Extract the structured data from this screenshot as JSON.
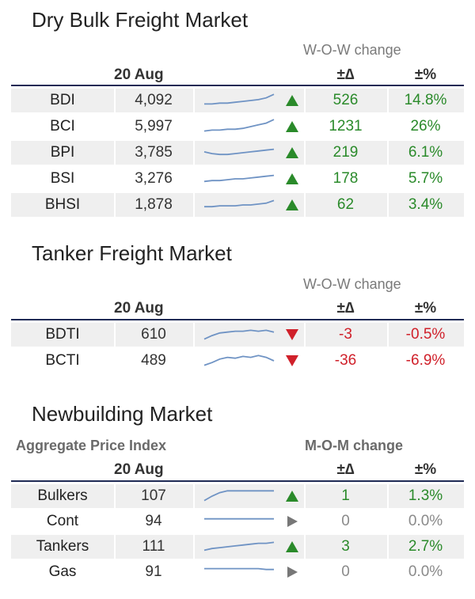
{
  "dry": {
    "title": "Dry Bulk Freight Market",
    "change_label": "W-O-W change",
    "date": "20 Aug",
    "delta_label": "±∆",
    "pct_label": "±%",
    "rows": [
      {
        "name": "BDI",
        "value": "4,092",
        "direction": "up",
        "delta": "526",
        "pct": "14.8%",
        "trend": [
          5,
          5,
          6,
          6,
          7,
          8,
          9,
          10,
          12,
          16
        ]
      },
      {
        "name": "BCI",
        "value": "5,997",
        "direction": "up",
        "delta": "1231",
        "pct": "26%",
        "trend": [
          4,
          5,
          5,
          6,
          6,
          7,
          9,
          11,
          13,
          17
        ]
      },
      {
        "name": "BPI",
        "value": "3,785",
        "direction": "up",
        "delta": "219",
        "pct": "6.1%",
        "trend": [
          10,
          8,
          7,
          7,
          8,
          9,
          10,
          11,
          12,
          13
        ]
      },
      {
        "name": "BSI",
        "value": "3,276",
        "direction": "up",
        "delta": "178",
        "pct": "5.7%",
        "trend": [
          6,
          7,
          7,
          8,
          9,
          9,
          10,
          11,
          12,
          13
        ]
      },
      {
        "name": "BHSI",
        "value": "1,878",
        "direction": "up",
        "delta": "62",
        "pct": "3.4%",
        "trend": [
          7,
          7,
          8,
          8,
          8,
          9,
          9,
          10,
          11,
          14
        ]
      }
    ]
  },
  "tanker": {
    "title": "Tanker Freight Market",
    "change_label": "W-O-W change",
    "date": "20 Aug",
    "delta_label": "±∆",
    "pct_label": "±%",
    "rows": [
      {
        "name": "BDTI",
        "value": "610",
        "direction": "down",
        "delta": "-3",
        "pct": "-0.5%",
        "trend": [
          4,
          8,
          11,
          12,
          13,
          13,
          14,
          13,
          14,
          12
        ]
      },
      {
        "name": "BCTI",
        "value": "489",
        "direction": "down",
        "delta": "-36",
        "pct": "-6.9%",
        "trend": [
          4,
          7,
          11,
          13,
          12,
          14,
          13,
          15,
          13,
          9
        ]
      }
    ]
  },
  "newbuild": {
    "title": "Newbuilding Market",
    "index_label": "Aggregate Price Index",
    "change_label": "M-O-M change",
    "date": "20 Aug",
    "delta_label": "±∆",
    "pct_label": "±%",
    "rows": [
      {
        "name": "Bulkers",
        "value": "107",
        "direction": "up",
        "delta": "1",
        "pct": "1.3%",
        "trend": [
          4,
          9,
          13,
          15,
          15,
          15,
          15,
          15,
          15,
          15
        ]
      },
      {
        "name": "Cont",
        "value": "94",
        "direction": "flat",
        "delta": "0",
        "pct": "0.0%",
        "trend": [
          12,
          12,
          12,
          12,
          12,
          12,
          12,
          12,
          12,
          12
        ]
      },
      {
        "name": "Tankers",
        "value": "111",
        "direction": "up",
        "delta": "3",
        "pct": "2.7%",
        "trend": [
          5,
          7,
          8,
          9,
          10,
          11,
          12,
          13,
          13,
          14
        ]
      },
      {
        "name": "Gas",
        "value": "91",
        "direction": "flat",
        "delta": "0",
        "pct": "0.0%",
        "trend": [
          13,
          13,
          13,
          13,
          13,
          13,
          13,
          13,
          12,
          12
        ]
      }
    ]
  },
  "colors": {
    "up": "#2a8a2a",
    "down": "#d0202a",
    "flat": "#8a8a8a",
    "spark": "#6f93c4",
    "rule": "#1f2a55"
  }
}
